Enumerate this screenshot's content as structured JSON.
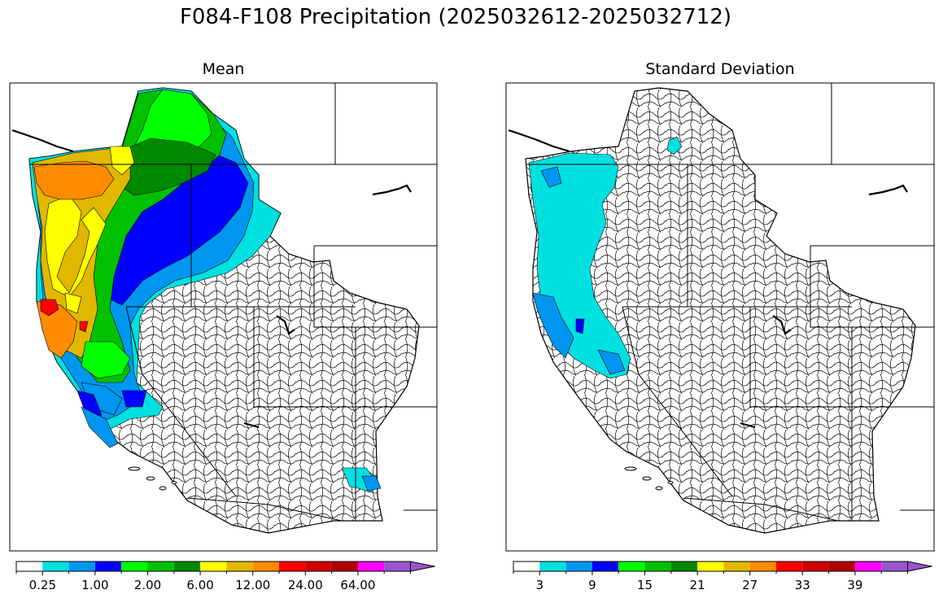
{
  "figure": {
    "title": "F084-F108 Precipitation (2025032612-2025032712)"
  },
  "panels": [
    {
      "id": "mean",
      "title": "Mean",
      "colorbar": {
        "colors": [
          "#ffffff",
          "#00e0e0",
          "#0096f0",
          "#0000ff",
          "#00ff00",
          "#00c000",
          "#008800",
          "#ffff00",
          "#e0b800",
          "#ff8c00",
          "#ff0000",
          "#d00000",
          "#b00000",
          "#ff00ff",
          "#9955cc"
        ],
        "tick_labels": [
          "0.25",
          "1.00",
          "2.00",
          "6.00",
          "12.00",
          "24.00",
          "64.00"
        ],
        "tick_index": [
          1,
          3,
          5,
          7,
          9,
          11,
          13
        ]
      }
    },
    {
      "id": "sd",
      "title": "Standard Deviation",
      "colorbar": {
        "colors": [
          "#ffffff",
          "#00e0e0",
          "#0096f0",
          "#0000ff",
          "#00ff00",
          "#00c000",
          "#008800",
          "#ffff00",
          "#e0b800",
          "#ff8c00",
          "#ff0000",
          "#d00000",
          "#b00000",
          "#ff00ff",
          "#9955cc"
        ],
        "tick_labels": [
          "3",
          "9",
          "15",
          "21",
          "27",
          "33",
          "39"
        ],
        "tick_index": [
          1,
          3,
          5,
          7,
          9,
          11,
          13
        ]
      }
    }
  ]
}
